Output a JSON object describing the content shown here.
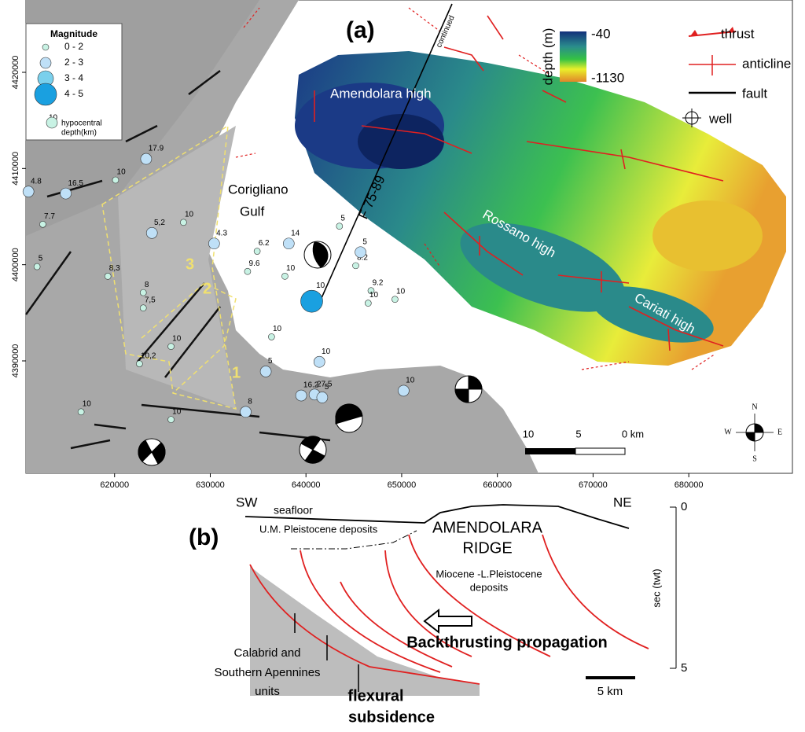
{
  "panel_a": {
    "label": "(a)",
    "map": {
      "xlim": [
        610740,
        690830
      ],
      "ylim": [
        4378310,
        4427520
      ],
      "xticks": [
        620000,
        630000,
        640000,
        650000,
        660000,
        670000,
        680000
      ],
      "yticks": [
        4390000,
        4400000,
        4410000,
        4420000
      ]
    },
    "gulf": [
      "Corigliano",
      "Gulf"
    ],
    "highs": [
      "Amendolara high",
      "Rossano high",
      "Cariati high"
    ],
    "profile": {
      "name": "F 75-89",
      "note": "continued"
    },
    "zones": [
      "1",
      "2",
      "3"
    ],
    "magnitude_legend": {
      "title": "Magnitude",
      "sample_depth": "10",
      "depth_caption": [
        "hypocentral",
        "depth(km)"
      ],
      "classes": [
        {
          "label": "0 - 2",
          "color": "#c8f2e4",
          "events": [
            {
              "x": 620100,
              "y": 4408800,
              "depth": "10"
            },
            {
              "x": 612500,
              "y": 4404200,
              "depth": "7.7"
            },
            {
              "x": 627200,
              "y": 4404400,
              "depth": "10"
            },
            {
              "x": 619300,
              "y": 4398800,
              "depth": "8,3"
            },
            {
              "x": 611900,
              "y": 4399800,
              "depth": "5"
            },
            {
              "x": 623000,
              "y": 4397100,
              "depth": "8"
            },
            {
              "x": 623000,
              "y": 4395500,
              "depth": "7,5"
            },
            {
              "x": 625900,
              "y": 4391500,
              "depth": "10"
            },
            {
              "x": 622600,
              "y": 4389700,
              "depth": "10,2"
            },
            {
              "x": 616500,
              "y": 4384700,
              "depth": "10"
            },
            {
              "x": 625900,
              "y": 4383900,
              "depth": "10"
            },
            {
              "x": 634900,
              "y": 4401400,
              "depth": "6.2"
            },
            {
              "x": 633900,
              "y": 4399300,
              "depth": "9.6"
            },
            {
              "x": 637800,
              "y": 4398800,
              "depth": "10"
            },
            {
              "x": 643500,
              "y": 4404000,
              "depth": "5"
            },
            {
              "x": 645200,
              "y": 4399900,
              "depth": "8.2"
            },
            {
              "x": 646800,
              "y": 4397300,
              "depth": "9.2"
            },
            {
              "x": 646500,
              "y": 4396000,
              "depth": "10"
            },
            {
              "x": 649300,
              "y": 4396400,
              "depth": "10"
            },
            {
              "x": 636400,
              "y": 4392500,
              "depth": "10"
            }
          ]
        },
        {
          "label": "2 - 3",
          "color": "#bfe0f7",
          "events": [
            {
              "x": 623300,
              "y": 4411000,
              "depth": "17.9"
            },
            {
              "x": 614900,
              "y": 4407400,
              "depth": "16.5"
            },
            {
              "x": 611000,
              "y": 4407600,
              "depth": "4.8"
            },
            {
              "x": 623900,
              "y": 4403300,
              "depth": "5,2"
            },
            {
              "x": 630400,
              "y": 4402200,
              "depth": "4.3"
            },
            {
              "x": 638200,
              "y": 4402200,
              "depth": "14"
            },
            {
              "x": 645700,
              "y": 4401300,
              "depth": "5"
            },
            {
              "x": 641400,
              "y": 4389900,
              "depth": "10"
            },
            {
              "x": 635800,
              "y": 4388900,
              "depth": "5"
            },
            {
              "x": 639500,
              "y": 4386400,
              "depth": "16.2"
            },
            {
              "x": 640900,
              "y": 4386500,
              "depth": "27.5"
            },
            {
              "x": 641700,
              "y": 4386200,
              "depth": "5"
            },
            {
              "x": 650200,
              "y": 4386900,
              "depth": "10"
            },
            {
              "x": 633700,
              "y": 4384700,
              "depth": "8"
            }
          ]
        },
        {
          "label": "3 - 4",
          "color": "#7ad0ec",
          "events": []
        },
        {
          "label": "4 - 5",
          "color": "#1aa0e0",
          "events": [
            {
              "x": 640600,
              "y": 4396200,
              "depth": "10"
            }
          ]
        }
      ]
    },
    "depth_scale": {
      "title": "depth (m)",
      "top": -40,
      "bottom": -1130
    },
    "symbols": {
      "thrust": "thrust",
      "anticline": "anticline",
      "fault": "fault",
      "well": "well"
    },
    "scale_bar": [
      "10",
      "5",
      "0 km"
    ],
    "compass": {
      "n": "N",
      "s": "S",
      "w": "W",
      "e": "E"
    }
  },
  "panel_b": {
    "label": "(b)",
    "sw": "SW",
    "ne": "NE",
    "seafloor": "seafloor",
    "pleistocene": "U.M. Pleistocene deposits",
    "ridge": [
      "AMENDOLARA",
      "RIDGE"
    ],
    "miocene": [
      "Miocene -L.Pleistocene",
      "deposits"
    ],
    "backthrusting": "Backthrusting propagation",
    "units": [
      "Calabrid and",
      "Southern Apennines",
      "units"
    ],
    "subsidence": [
      "flexural",
      "subsidence"
    ],
    "axis_label": "sec (twt)",
    "yticks": [
      0,
      5
    ],
    "scale": "5 km"
  }
}
